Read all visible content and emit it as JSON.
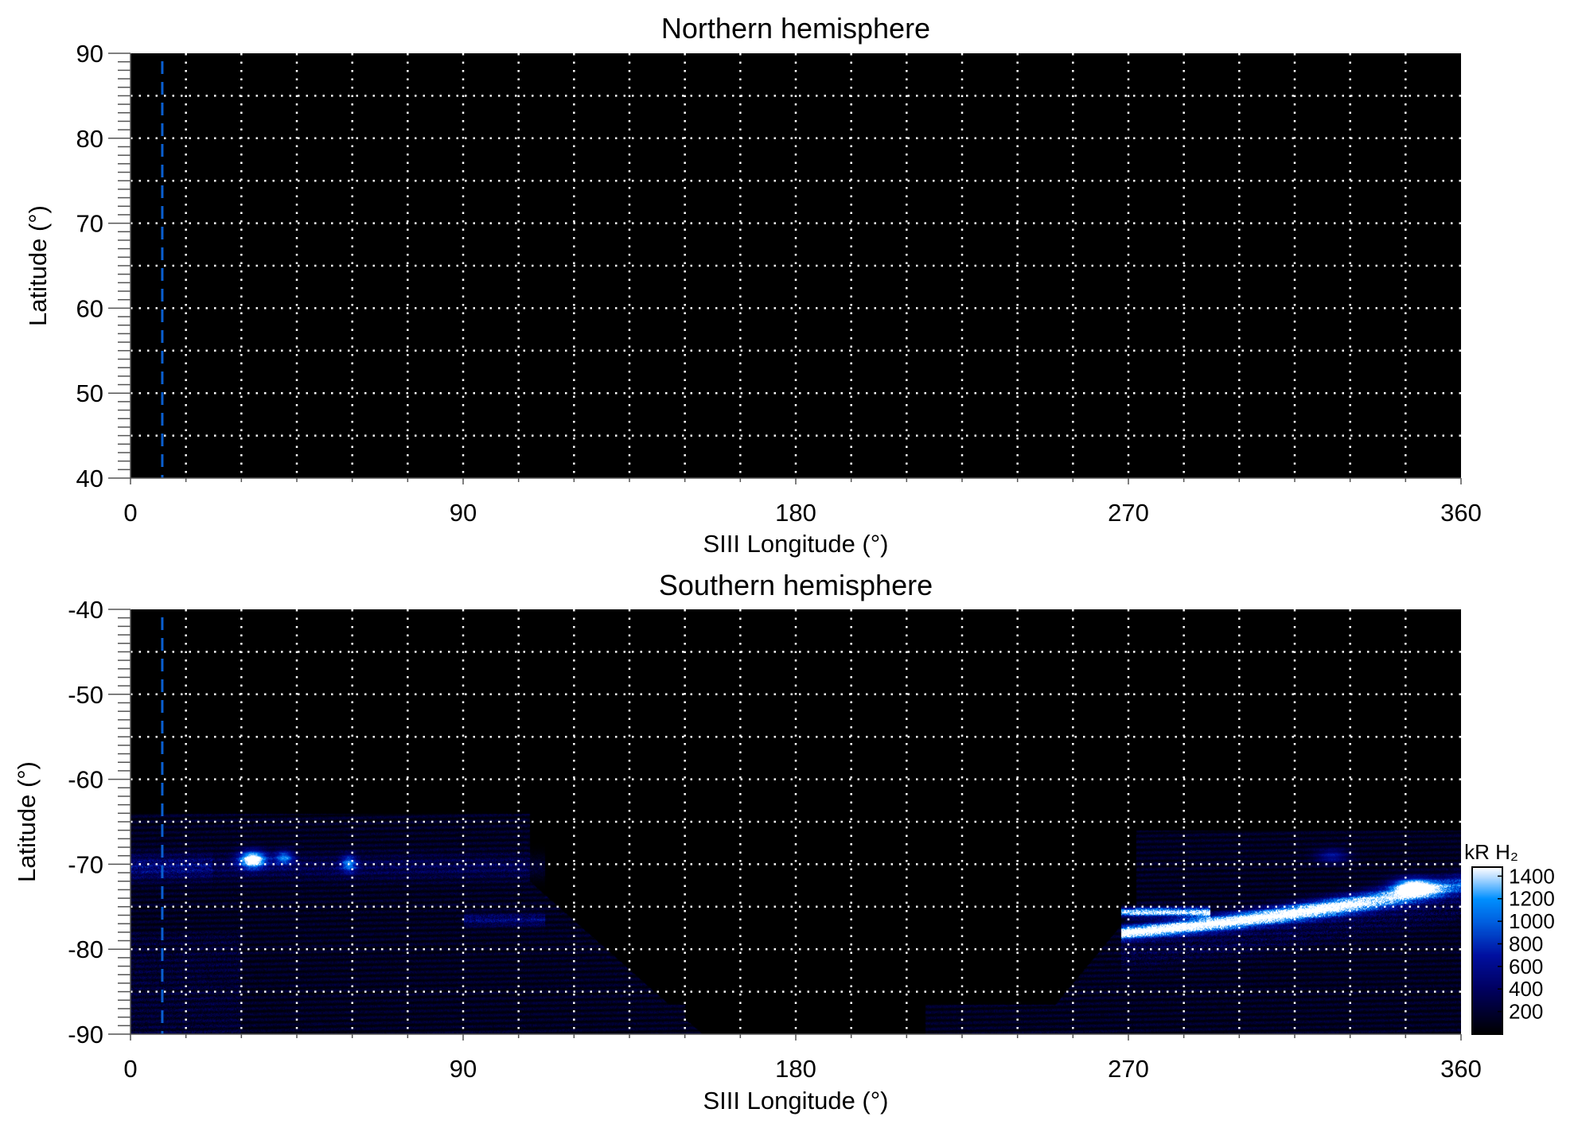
{
  "chart_data": [
    {
      "type": "heatmap",
      "title": "Northern hemisphere",
      "xlabel": "SIII Longitude (°)",
      "ylabel": "Latitude (°)",
      "xlim": [
        0,
        360
      ],
      "ylim": [
        40,
        90
      ],
      "xticks": [
        0,
        90,
        180,
        270,
        360
      ],
      "yticks": [
        40,
        50,
        60,
        70,
        80,
        90
      ],
      "grid": {
        "x_step": 15,
        "y_step": 5,
        "style": "dotted",
        "color": "#ffffff"
      },
      "reference_line": {
        "longitude": 8.6,
        "style": "dashed",
        "color": "#0a5fd0"
      }
    },
    {
      "type": "heatmap",
      "title": "Southern hemisphere",
      "xlabel": "SIII Longitude (°)",
      "ylabel": "Latitude (°)",
      "xlim": [
        0,
        360
      ],
      "ylim": [
        -90,
        -40
      ],
      "xticks": [
        0,
        90,
        180,
        270,
        360
      ],
      "yticks": [
        -90,
        -80,
        -70,
        -60,
        -50,
        -40
      ],
      "grid": {
        "x_step": 15,
        "y_step": 5,
        "style": "dotted",
        "color": "#ffffff"
      },
      "reference_line": {
        "longitude": 8.6,
        "style": "dashed",
        "color": "#0a5fd0"
      },
      "colorbar": {
        "label": "kR H₂",
        "range": [
          0,
          1480
        ],
        "ticks": [
          200,
          400,
          600,
          800,
          1000,
          1200,
          1400
        ],
        "colormap": [
          "#000000",
          "#000060",
          "#0010a0",
          "#0060e0",
          "#0090ff",
          "#c0e0ff",
          "#ffffff"
        ]
      }
    }
  ]
}
